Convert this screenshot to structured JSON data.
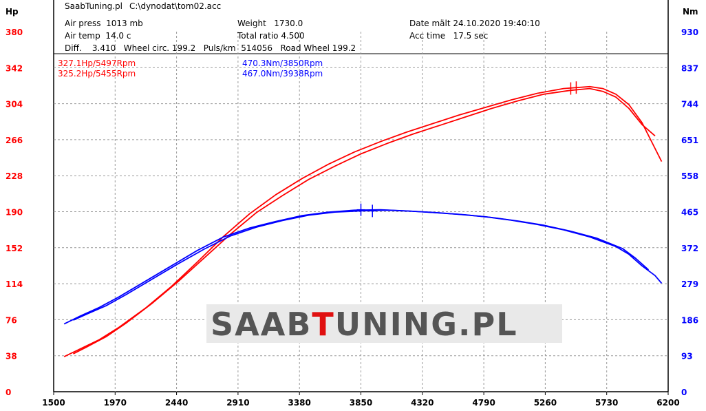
{
  "header": {
    "software": "SaabTuning.pl",
    "file": "C:\\dynodat\\tom02.acc",
    "air_press": "Air press  1013 mb",
    "air_temp": "Air temp  14.0 c",
    "weight": "Weight   1730.0",
    "total_ratio": "Total ratio 4.500",
    "date": "Date mält 24.10.2020 19:40:10",
    "acc_time": "Acc time   17.5 sec",
    "diff_line": "Diff.    3.410   Wheel circ. 199.2   Puls/km  514056   Road Wheel 199.2"
  },
  "annotations": {
    "hp1": "327.1Hp/5497Rpm",
    "hp2": "325.2Hp/5455Rpm",
    "nm1": "470.3Nm/3850Rpm",
    "nm2": "467.0Nm/3938Rpm"
  },
  "watermark": {
    "part1": "SAAB",
    "part2": "T",
    "part3": "UNING.PL"
  },
  "chart_data": {
    "type": "line",
    "left_axis_label": "Hp",
    "right_axis_label": "Nm",
    "x_ticks": [
      1500,
      1970,
      2440,
      2910,
      3380,
      3850,
      4320,
      4790,
      5260,
      5730,
      6200
    ],
    "xlim": [
      1500,
      6200
    ],
    "left_ticks": [
      0,
      38,
      76,
      114,
      152,
      190,
      228,
      266,
      304,
      342,
      380
    ],
    "left_ylim": [
      0,
      380
    ],
    "right_ticks": [
      0,
      93,
      186,
      279,
      372,
      465,
      558,
      651,
      744,
      837,
      930
    ],
    "right_ylim": [
      0,
      930
    ],
    "colors": {
      "power": "#ff0000",
      "torque": "#0000ff",
      "left_ticks": "#ff0000",
      "right_ticks": "#0000ff"
    },
    "series": [
      {
        "axis": "left",
        "color": "#ff0000",
        "x": [
          1580,
          1700,
          1850,
          2000,
          2200,
          2400,
          2600,
          2800,
          3000,
          3200,
          3400,
          3600,
          3800,
          4000,
          4200,
          4400,
          4600,
          4800,
          5000,
          5200,
          5400,
          5600,
          5700,
          5800,
          5900,
          6000,
          6150
        ],
        "y": [
          37,
          45,
          55,
          68,
          88,
          111,
          137,
          164,
          188,
          208,
          225,
          240,
          253,
          264,
          274,
          283,
          292,
          300,
          308,
          315,
          320,
          322,
          320,
          314,
          303,
          284,
          243
        ]
      },
      {
        "axis": "left",
        "color": "#ff0000",
        "x": [
          1650,
          1750,
          1900,
          2050,
          2250,
          2450,
          2650,
          2850,
          3050,
          3250,
          3450,
          3650,
          3850,
          4050,
          4250,
          4450,
          4650,
          4850,
          5050,
          5250,
          5450,
          5600,
          5700,
          5800,
          5900,
          6000,
          6100
        ],
        "y": [
          40,
          47,
          58,
          72,
          93,
          116,
          141,
          166,
          189,
          207,
          224,
          238,
          251,
          262,
          272,
          281,
          290,
          299,
          307,
          314,
          318,
          320,
          317,
          311,
          299,
          282,
          270
        ]
      },
      {
        "axis": "right",
        "color": "#0000ff",
        "x": [
          1580,
          1700,
          1850,
          2000,
          2200,
          2400,
          2600,
          2800,
          3000,
          3200,
          3400,
          3600,
          3800,
          4000,
          4200,
          4400,
          4600,
          4800,
          5000,
          5200,
          5400,
          5600,
          5800,
          5900,
          6000,
          6100,
          6150
        ],
        "y": [
          175,
          195,
          218,
          245,
          285,
          325,
          365,
          400,
          423,
          440,
          455,
          464,
          469,
          470,
          467,
          463,
          458,
          452,
          443,
          432,
          418,
          400,
          375,
          355,
          325,
          300,
          280
        ]
      },
      {
        "axis": "right",
        "color": "#0000ff",
        "x": [
          1650,
          1750,
          1900,
          2050,
          2250,
          2450,
          2650,
          2850,
          3050,
          3250,
          3450,
          3650,
          3850,
          4050,
          4250,
          4450,
          4650,
          4850,
          5050,
          5250,
          5450,
          5650,
          5850,
          5950,
          6050
        ],
        "y": [
          185,
          200,
          222,
          250,
          290,
          330,
          368,
          402,
          425,
          442,
          456,
          464,
          467,
          469,
          466,
          462,
          457,
          450,
          441,
          430,
          415,
          397,
          370,
          345,
          315
        ]
      }
    ],
    "markers": [
      {
        "axis": "left",
        "x": 5455,
        "y": 320,
        "color": "#ff0000"
      },
      {
        "axis": "left",
        "x": 5497,
        "y": 321,
        "color": "#ff0000"
      },
      {
        "axis": "right",
        "x": 3850,
        "y": 470,
        "color": "#0000ff"
      },
      {
        "axis": "right",
        "x": 3938,
        "y": 467,
        "color": "#0000ff"
      }
    ]
  }
}
